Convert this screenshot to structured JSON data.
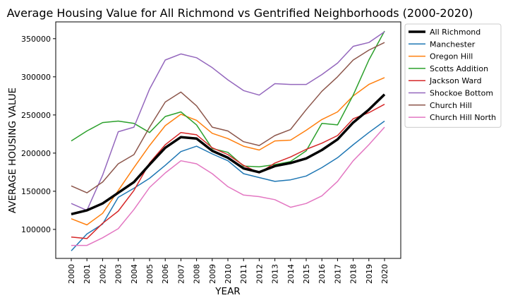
{
  "chart_data": {
    "type": "line",
    "title": "Average Housing Value for All Richmond vs Gentrified Neighborhoods (2000-2020)",
    "xlabel": "YEAR",
    "ylabel": "AVERAGE HOUSING VALUE",
    "x": [
      "2000",
      "2001",
      "2002",
      "2003",
      "2004",
      "2005",
      "2006",
      "2007",
      "2008",
      "2009",
      "2010",
      "2011",
      "2012",
      "2013",
      "2014",
      "2015",
      "2016",
      "2017",
      "2018",
      "2019",
      "2020"
    ],
    "ylim": [
      62000,
      372000
    ],
    "yticks": [
      100000,
      150000,
      200000,
      250000,
      300000,
      350000
    ],
    "ytick_labels": [
      "100000",
      "150000",
      "200000",
      "250000",
      "300000",
      "350000"
    ],
    "grid": false,
    "legend": "outside-right",
    "series": [
      {
        "name": "All Richmond",
        "color": "#000000",
        "width": 3.5,
        "values": [
          120000,
          125000,
          134000,
          148000,
          162000,
          185000,
          207000,
          221000,
          219000,
          203000,
          194000,
          180000,
          175000,
          183000,
          187000,
          193000,
          204000,
          218000,
          240000,
          257000,
          277000
        ]
      },
      {
        "name": "Manchester",
        "color": "#1f77b4",
        "width": 1.5,
        "values": [
          72000,
          94000,
          107000,
          142000,
          154000,
          167000,
          184000,
          202000,
          209000,
          199000,
          190000,
          173000,
          168000,
          163000,
          165000,
          170000,
          181000,
          194000,
          211000,
          227000,
          242000
        ]
      },
      {
        "name": "Oregon Hill",
        "color": "#ff7f0e",
        "width": 1.5,
        "values": [
          114000,
          106000,
          121000,
          151000,
          181000,
          210000,
          236000,
          251000,
          243000,
          226000,
          219000,
          209000,
          204000,
          216000,
          217000,
          230000,
          244000,
          254000,
          275000,
          290000,
          299000
        ]
      },
      {
        "name": "Scotts Addition",
        "color": "#2ca02c",
        "width": 1.5,
        "values": [
          216000,
          229000,
          240000,
          242000,
          239000,
          227000,
          248000,
          254000,
          237000,
          206000,
          201000,
          183000,
          182000,
          185000,
          189000,
          203000,
          239000,
          237000,
          276000,
          322000,
          360000
        ]
      },
      {
        "name": "Jackson Ward",
        "color": "#d62728",
        "width": 1.5,
        "values": [
          90000,
          88000,
          108000,
          124000,
          151000,
          187000,
          211000,
          227000,
          224000,
          207000,
          198000,
          184000,
          174000,
          187000,
          195000,
          205000,
          213000,
          223000,
          245000,
          253000,
          264000
        ]
      },
      {
        "name": "Shockoe Bottom",
        "color": "#9467bd",
        "width": 1.5,
        "values": [
          134000,
          125000,
          171000,
          228000,
          234000,
          284000,
          322000,
          330000,
          325000,
          312000,
          296000,
          282000,
          276000,
          291000,
          290000,
          290000,
          303000,
          318000,
          340000,
          345000,
          359000
        ]
      },
      {
        "name": "Church Hill",
        "color": "#8c564b",
        "width": 1.5,
        "values": [
          157000,
          148000,
          162000,
          186000,
          198000,
          234000,
          267000,
          280000,
          262000,
          234000,
          229000,
          215000,
          210000,
          223000,
          231000,
          257000,
          281000,
          300000,
          322000,
          335000,
          345000
        ]
      },
      {
        "name": "Church Hill North",
        "color": "#e377c2",
        "width": 1.5,
        "values": [
          79000,
          79000,
          89000,
          101000,
          126000,
          155000,
          174000,
          190000,
          186000,
          173000,
          156000,
          145000,
          143000,
          139000,
          129000,
          134000,
          144000,
          163000,
          190000,
          211000,
          234000
        ]
      }
    ]
  }
}
